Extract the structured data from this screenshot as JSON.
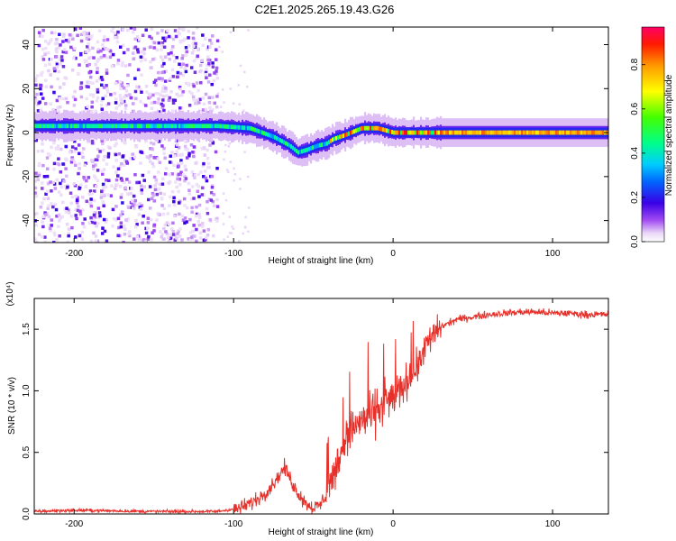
{
  "title": "C2E1.2025.265.19.43.G26",
  "colors": {
    "snr_line": "#e8302a",
    "frame": "#000000"
  },
  "chart_data": [
    {
      "type": "heatmap",
      "name": "spectrogram",
      "xlabel": "Height of straight line (km)",
      "ylabel": "Frequency (Hz)",
      "xlim": [
        -225,
        135
      ],
      "ylim": [
        -50,
        48
      ],
      "xticks": [
        -200,
        -100,
        0,
        100
      ],
      "yticks": [
        -40,
        -20,
        0,
        20,
        40
      ],
      "colorbar": {
        "label": "Normalized spectral amplitude",
        "range": [
          0,
          0.97
        ],
        "ticks": [
          0.0,
          0.2,
          0.4,
          0.6,
          0.8
        ],
        "tick_labels": [
          "0.0",
          "0.2",
          "0.4",
          "0.6",
          "0.8"
        ]
      },
      "ridge": {
        "x": [
          -225,
          -110,
          -90,
          -75,
          -65,
          -60,
          -55,
          -48,
          -42,
          -38,
          -30,
          -20,
          -10,
          0,
          10,
          20,
          40,
          80,
          135
        ],
        "freq": [
          3,
          3,
          2,
          -2,
          -6,
          -9,
          -8,
          -6,
          -5,
          -3,
          -1,
          2,
          2,
          0,
          0,
          0,
          0,
          0,
          0
        ]
      },
      "noise_region_x": [
        -225,
        -110
      ]
    },
    {
      "type": "line",
      "name": "snr",
      "xlabel": "Height of straight line (km)",
      "ylabel": "SNR (10 * v/v)",
      "y_multiplier": "(x10⁴)",
      "xlim": [
        -225,
        135
      ],
      "ylim": [
        0,
        1.75
      ],
      "xticks": [
        -200,
        -100,
        0,
        100
      ],
      "yticks": [
        0.0,
        0.5,
        1.0,
        1.5
      ],
      "ytick_labels": [
        "0.0",
        "0.5",
        "1.0",
        "1.5"
      ],
      "series": [
        {
          "x": [
            -225,
            -200,
            -150,
            -110,
            -95,
            -85,
            -78,
            -72,
            -68,
            -62,
            -58,
            -54,
            -50,
            -46,
            -42,
            -38,
            -34,
            -30,
            -25,
            -20,
            -15,
            -10,
            -5,
            0,
            5,
            10,
            15,
            20,
            25,
            30,
            40,
            50,
            60,
            70,
            80,
            90,
            100,
            110,
            120,
            135
          ],
          "values": [
            0.02,
            0.03,
            0.02,
            0.02,
            0.05,
            0.12,
            0.2,
            0.3,
            0.38,
            0.22,
            0.14,
            0.08,
            0.05,
            0.07,
            0.15,
            0.3,
            0.45,
            0.6,
            0.7,
            0.75,
            0.8,
            0.85,
            0.9,
            0.95,
            1.02,
            1.1,
            1.2,
            1.35,
            1.45,
            1.52,
            1.58,
            1.6,
            1.62,
            1.63,
            1.64,
            1.64,
            1.63,
            1.63,
            1.62,
            1.62
          ]
        }
      ]
    }
  ]
}
